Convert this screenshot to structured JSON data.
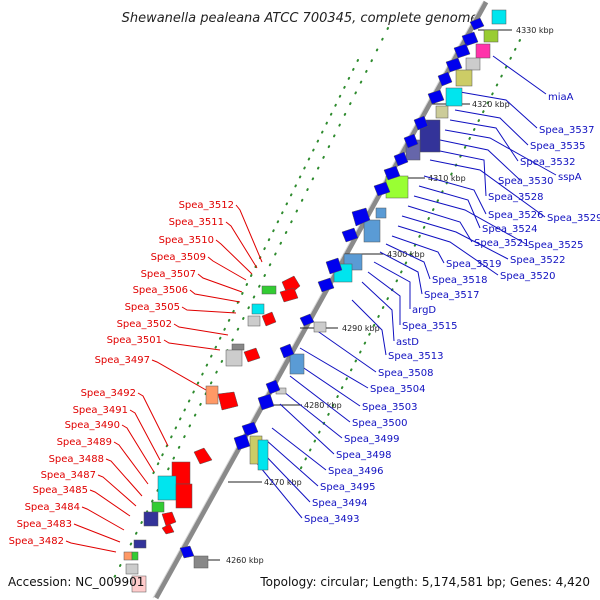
{
  "title": "Shewanella pealeana ATCC 700345, complete genome",
  "footer": {
    "accession": "Accession: NC_009901",
    "summary": "Topology: circular; Length: 5,174,581 bp; Genes: 4,420"
  },
  "colors": {
    "label_left": "#e00000",
    "label_right": "#1010c0",
    "backbone": "#8a8a8a",
    "tick": "#2e8b2e"
  },
  "ticks": [
    "4260 kbp",
    "4270 kbp",
    "4280 kbp",
    "4290 kbp",
    "4300 kbp",
    "4310 kbp",
    "4320 kbp",
    "4330 kbp"
  ],
  "left_labels": [
    "Spea_3512",
    "Spea_3511",
    "Spea_3510",
    "Spea_3509",
    "Spea_3507",
    "Spea_3506",
    "Spea_3505",
    "Spea_3502",
    "Spea_3501",
    "Spea_3497",
    "Spea_3492",
    "Spea_3491",
    "Spea_3490",
    "Spea_3489",
    "Spea_3488",
    "Spea_3487",
    "Spea_3485",
    "Spea_3484",
    "Spea_3483",
    "Spea_3482"
  ],
  "right_labels": [
    "miaA",
    "Spea_3537",
    "Spea_3535",
    "Spea_3532",
    "sspA",
    "Spea_3530",
    "Spea_3528",
    "Spea_3529",
    "Spea_3526",
    "Spea_3524",
    "Spea_3525",
    "Spea_3521",
    "Spea_3522",
    "Spea_3520",
    "Spea_3519",
    "Spea_3518",
    "Spea_3517",
    "argD",
    "Spea_3515",
    "astD",
    "Spea_3513",
    "Spea_3508",
    "Spea_3504",
    "Spea_3503",
    "Spea_3500",
    "Spea_3499",
    "Spea_3498",
    "Spea_3496",
    "Spea_3495",
    "Spea_3494",
    "Spea_3493"
  ]
}
